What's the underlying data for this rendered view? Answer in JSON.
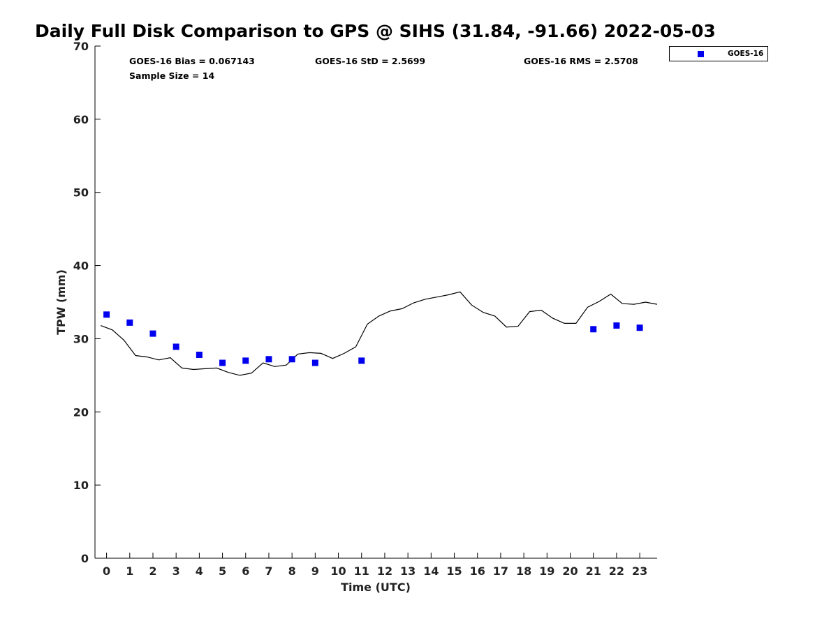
{
  "chart_data": {
    "type": "scatter",
    "title": "Daily Full Disk Comparison to GPS @ SIHS (31.84, -91.66) 2022-05-03",
    "xlabel": "Time (UTC)",
    "ylabel": "TPW (mm)",
    "xlim": [
      -0.5,
      23.75
    ],
    "ylim": [
      0,
      70
    ],
    "xticks": [
      "0",
      "1",
      "2",
      "3",
      "4",
      "5",
      "6",
      "7",
      "8",
      "9",
      "10",
      "11",
      "12",
      "13",
      "14",
      "15",
      "16",
      "17",
      "18",
      "19",
      "20",
      "21",
      "22",
      "23"
    ],
    "yticks": [
      "0",
      "10",
      "20",
      "30",
      "40",
      "50",
      "60",
      "70"
    ],
    "grid": false,
    "legend_position": "top-right, outside plot",
    "stats": {
      "bias": "GOES-16 Bias = 0.067143",
      "std": "GOES-16 StD = 2.5699",
      "rms": "GOES-16 RMS = 2.5708",
      "sample": "Sample Size = 14"
    },
    "series": [
      {
        "name": "GOES-16",
        "kind": "scatter",
        "color": "#0000ee",
        "x": [
          0,
          1,
          2,
          3,
          4,
          5,
          6,
          7,
          8,
          9,
          11,
          21,
          22,
          23
        ],
        "y": [
          33.3,
          32.2,
          30.7,
          28.9,
          27.8,
          26.7,
          27.0,
          27.2,
          27.2,
          26.7,
          27.0,
          31.3,
          31.8,
          31.5
        ]
      },
      {
        "kind": "line",
        "color": "#000000",
        "x": [
          -0.25,
          0.25,
          0.75,
          1.25,
          1.75,
          2.25,
          2.75,
          3.25,
          3.75,
          4.25,
          4.75,
          5.25,
          5.75,
          6.25,
          6.75,
          7.25,
          7.75,
          8.25,
          8.75,
          9.25,
          9.75,
          10.25,
          10.75,
          11.25,
          11.75,
          12.25,
          12.75,
          13.25,
          13.75,
          14.25,
          14.75,
          15.25,
          15.75,
          16.25,
          16.75,
          17.25,
          17.75,
          18.25,
          18.75,
          19.25,
          19.75,
          20.25,
          20.75,
          21.25,
          21.75,
          22.25,
          22.75,
          23.25,
          23.75
        ],
        "y": [
          31.8,
          31.2,
          29.8,
          27.7,
          27.5,
          27.1,
          27.4,
          26.0,
          25.8,
          25.9,
          26.0,
          25.4,
          25.0,
          25.3,
          26.7,
          26.2,
          26.4,
          27.9,
          28.1,
          28.0,
          27.3,
          28.0,
          28.9,
          32.0,
          33.1,
          33.8,
          34.1,
          34.9,
          35.4,
          35.7,
          36.0,
          36.4,
          34.6,
          33.6,
          33.1,
          31.6,
          31.7,
          33.7,
          33.9,
          32.8,
          32.1,
          32.1,
          34.3,
          35.1,
          36.1,
          34.8,
          34.7,
          35.0,
          34.7
        ]
      }
    ]
  }
}
